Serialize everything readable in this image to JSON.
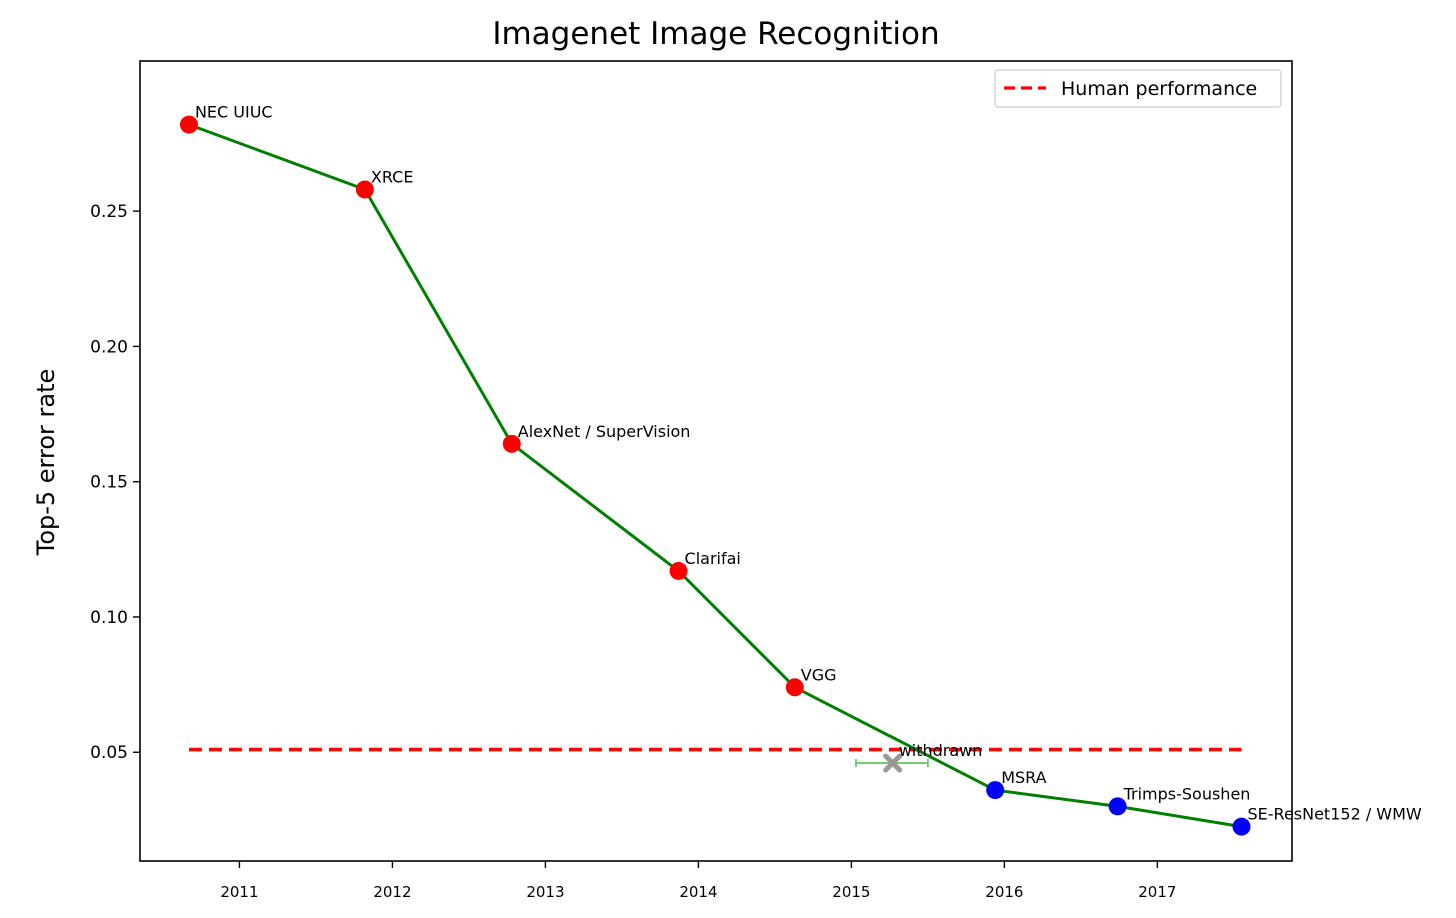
{
  "chart_data": {
    "type": "line",
    "title": "Imagenet Image Recognition",
    "xlabel": "",
    "ylabel": "Top-5 error rate",
    "xlim": [
      2010.35,
      2017.88
    ],
    "ylim": [
      0.0098,
      0.3055
    ],
    "x_ticks": [
      2011,
      2012,
      2013,
      2014,
      2015,
      2016,
      2017
    ],
    "x_tick_labels": [
      "2011",
      "2012",
      "2013",
      "2014",
      "2015",
      "2016",
      "2017"
    ],
    "y_ticks": [
      0.05,
      0.1,
      0.15,
      0.2,
      0.25
    ],
    "y_tick_labels": [
      "0.05",
      "0.10",
      "0.15",
      "0.20",
      "0.25"
    ],
    "grid": false,
    "legend_position": "top-right",
    "colors": {
      "trend_line": "#008000",
      "pre_human_points": "#ff0000",
      "post_human_points": "#0000ff",
      "human_line": "#ff0000",
      "withdrawn": "#999999",
      "withdrawn_errorbar": "#66cc66"
    },
    "series": [
      {
        "name": "",
        "points": [
          {
            "x": 2010.67,
            "y": 0.282,
            "label": "NEC UIUC",
            "color": "#ff0000"
          },
          {
            "x": 2011.82,
            "y": 0.258,
            "label": "XRCE",
            "color": "#ff0000"
          },
          {
            "x": 2012.78,
            "y": 0.164,
            "label": "AlexNet / SuperVision",
            "color": "#ff0000"
          },
          {
            "x": 2013.87,
            "y": 0.117,
            "label": "Clarifai",
            "color": "#ff0000"
          },
          {
            "x": 2014.63,
            "y": 0.074,
            "label": "VGG",
            "color": "#ff0000"
          },
          {
            "x": 2015.94,
            "y": 0.036,
            "label": "MSRA",
            "color": "#0000ff"
          },
          {
            "x": 2016.74,
            "y": 0.03,
            "label": "Trimps-Soushen",
            "color": "#0000ff"
          },
          {
            "x": 2017.55,
            "y": 0.0225,
            "label": "SE-ResNet152 / WMW",
            "color": "#0000ff"
          }
        ]
      },
      {
        "name": "Human performance",
        "style": "dashed",
        "x": [
          2010.67,
          2017.55
        ],
        "y": [
          0.051,
          0.051
        ]
      }
    ],
    "annotations": [
      {
        "x": 2015.27,
        "y": 0.046,
        "xerr": [
          2015.03,
          2015.5
        ],
        "label": "withdrawn",
        "marker": "x"
      }
    ]
  }
}
